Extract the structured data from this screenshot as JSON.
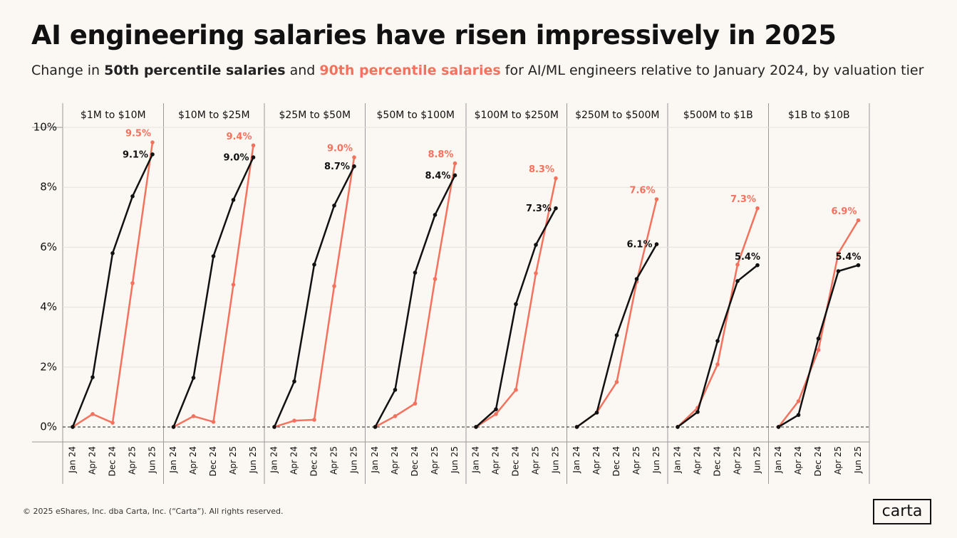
{
  "chart_data": {
    "type": "line",
    "title": "AI engineering salaries have risen impressively in 2025",
    "subtitle": {
      "prefix": "Change in",
      "join": "and",
      "suffix": "for AI/ML engineers relative to January 2024, by valuation tier"
    },
    "series": [
      {
        "name": "50th percentile salaries",
        "color": "#111111"
      },
      {
        "name": "90th percentile salaries",
        "color": "#f4725d"
      }
    ],
    "categories": [
      "Jan 24",
      "Apr 24",
      "Dec 24",
      "Apr 25",
      "Jun 25"
    ],
    "ylim": [
      -0.5,
      10
    ],
    "yticks": [
      {
        "value": 0,
        "label": "0%"
      },
      {
        "value": 2,
        "label": "2%"
      },
      {
        "value": 4,
        "label": "4%"
      },
      {
        "value": 6,
        "label": "6%"
      },
      {
        "value": 8,
        "label": "8%"
      },
      {
        "value": 10,
        "label": "10%"
      }
    ],
    "grid": true,
    "panels": [
      {
        "title": "$1M to $10M",
        "series": [
          {
            "values": [
              0,
              1.66,
              5.8,
              7.7,
              9.1
            ],
            "value_labels": [
              null,
              null,
              null,
              null,
              "9.1%"
            ]
          },
          {
            "values": [
              0,
              0.43,
              0.14,
              4.8,
              9.5
            ],
            "value_labels": [
              null,
              null,
              null,
              null,
              "9.5%"
            ]
          }
        ]
      },
      {
        "title": "$10M to $25M",
        "series": [
          {
            "values": [
              0,
              1.64,
              5.7,
              7.58,
              9.0
            ],
            "value_labels": [
              null,
              null,
              null,
              null,
              "9.0%"
            ]
          },
          {
            "values": [
              0,
              0.36,
              0.17,
              4.75,
              9.4
            ],
            "value_labels": [
              null,
              null,
              null,
              null,
              "9.4%"
            ]
          }
        ]
      },
      {
        "title": "$25M to $50M",
        "series": [
          {
            "values": [
              0,
              1.52,
              5.42,
              7.39,
              8.7
            ],
            "value_labels": [
              null,
              null,
              null,
              null,
              "8.7%"
            ]
          },
          {
            "values": [
              0,
              0.21,
              0.24,
              4.7,
              9.0
            ],
            "value_labels": [
              null,
              null,
              null,
              null,
              "9.0%"
            ]
          }
        ]
      },
      {
        "title": "$50M to $100M",
        "series": [
          {
            "values": [
              0,
              1.24,
              5.15,
              7.08,
              8.4
            ],
            "value_labels": [
              null,
              null,
              null,
              null,
              "8.4%"
            ]
          },
          {
            "values": [
              0,
              0.36,
              0.78,
              4.94,
              8.8
            ],
            "value_labels": [
              null,
              null,
              null,
              null,
              "8.8%"
            ]
          }
        ]
      },
      {
        "title": "$100M to $250M",
        "series": [
          {
            "values": [
              0,
              0.59,
              4.1,
              6.08,
              7.3
            ],
            "value_labels": [
              null,
              null,
              null,
              null,
              "7.3%"
            ]
          },
          {
            "values": [
              0,
              0.43,
              1.24,
              5.13,
              8.3
            ],
            "value_labels": [
              null,
              null,
              null,
              null,
              "8.3%"
            ]
          }
        ]
      },
      {
        "title": "$250M to $500M",
        "series": [
          {
            "values": [
              0,
              0.48,
              3.06,
              4.94,
              6.1
            ],
            "value_labels": [
              null,
              null,
              null,
              null,
              "6.1%"
            ]
          },
          {
            "values": [
              0,
              0.48,
              1.5,
              4.85,
              7.6
            ],
            "value_labels": [
              null,
              null,
              null,
              null,
              "7.6%"
            ]
          }
        ]
      },
      {
        "title": "$500M to $1B",
        "series": [
          {
            "values": [
              0,
              0.5,
              2.87,
              4.87,
              5.4
            ],
            "value_labels": [
              null,
              null,
              null,
              null,
              "5.4%"
            ]
          },
          {
            "values": [
              0,
              0.64,
              2.09,
              5.42,
              7.3
            ],
            "value_labels": [
              null,
              null,
              null,
              null,
              "7.3%"
            ]
          }
        ]
      },
      {
        "title": "$1B to $10B",
        "series": [
          {
            "values": [
              0,
              0.4,
              2.95,
              5.2,
              5.4
            ],
            "value_labels": [
              null,
              null,
              null,
              null,
              "5.4%"
            ]
          },
          {
            "values": [
              0,
              0.86,
              2.57,
              5.8,
              6.9
            ],
            "value_labels": [
              null,
              null,
              null,
              null,
              "6.9%"
            ]
          }
        ]
      }
    ]
  },
  "footer": {
    "copyright": "© 2025 eShares, Inc. dba Carta, Inc. (“Carta”). All rights reserved.",
    "logo": "carta"
  }
}
